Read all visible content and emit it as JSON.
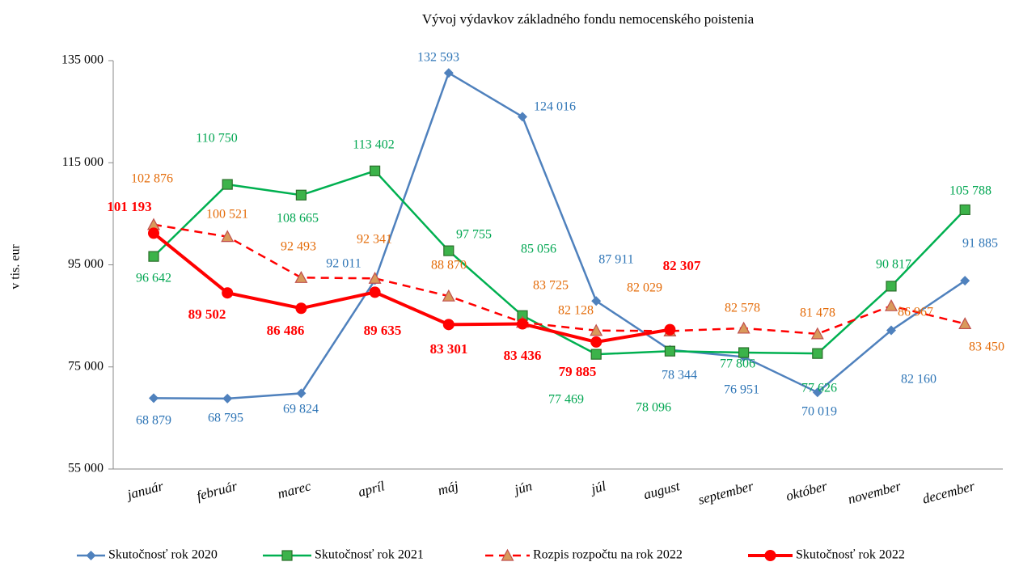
{
  "chart_data": {
    "type": "line",
    "title": "Vývoj výdavkov základného fondu nemocenského poistenia",
    "y_label": "v tis. eur",
    "categories": [
      "január",
      "február",
      "marec",
      "apríl",
      "máj",
      "jún",
      "júl",
      "august",
      "september",
      "október",
      "november",
      "december"
    ],
    "ylim": [
      55000,
      135000
    ],
    "yticks": [
      {
        "value": 55000,
        "label": "55 000"
      },
      {
        "value": 75000,
        "label": "75 000"
      },
      {
        "value": 95000,
        "label": "95 000"
      },
      {
        "value": 115000,
        "label": "115 000"
      },
      {
        "value": 135000,
        "label": "135 000"
      }
    ],
    "grid": false,
    "legend": "bottom",
    "series": [
      {
        "name": "Skutočnosť rok 2020",
        "color": "#4f81bd",
        "marker": "diamond",
        "label_color": "#2e75b6",
        "values": [
          68879,
          68795,
          69824,
          92011,
          132593,
          124016,
          87911,
          78344,
          76951,
          70019,
          82160,
          91885
        ],
        "value_labels": [
          "68 879",
          "68 795",
          "69 824",
          "92 011",
          "132 593",
          "124 016",
          "87 911",
          "78 344",
          "76 951",
          "70 019",
          "82 160",
          "91 885"
        ]
      },
      {
        "name": "Skutočnosť rok 2021",
        "color": "#00b050",
        "marker": "square",
        "label_color": "#00a651",
        "values": [
          96642,
          110750,
          108665,
          113402,
          97755,
          85056,
          77469,
          78096,
          77806,
          77626,
          90817,
          105788
        ],
        "value_labels": [
          "96 642",
          "110 750",
          "108 665",
          "113 402",
          "97 755",
          "85 056",
          "77 469",
          "78 096",
          "77 806",
          "77 626",
          "90 817",
          "105 788"
        ]
      },
      {
        "name": "Rozpis rozpočtu na rok 2022",
        "color": "#ff0000",
        "marker": "triangle",
        "dashed": true,
        "label_color": "#e46c0a",
        "values": [
          102876,
          100521,
          92493,
          92341,
          88870,
          83725,
          82128,
          82029,
          82578,
          81478,
          86967,
          83450
        ],
        "value_labels": [
          "102 876",
          "100 521",
          "92 493",
          "92 341",
          "88 870",
          "83 725",
          "82 128",
          "82 029",
          "82 578",
          "81 478",
          "86 967",
          "83 450"
        ]
      },
      {
        "name": "Skutočnosť rok 2022",
        "color": "#ff0000",
        "marker": "circle",
        "bold": true,
        "label_color": "#ff0000",
        "values": [
          101193,
          89502,
          86486,
          89635,
          83301,
          83436,
          79885,
          82307,
          null,
          null,
          null,
          null
        ],
        "value_labels": [
          "101 193",
          "89 502",
          "86 486",
          "89 635",
          "83 301",
          "83 436",
          "79 885",
          "82 307",
          null,
          null,
          null,
          null
        ]
      }
    ]
  }
}
